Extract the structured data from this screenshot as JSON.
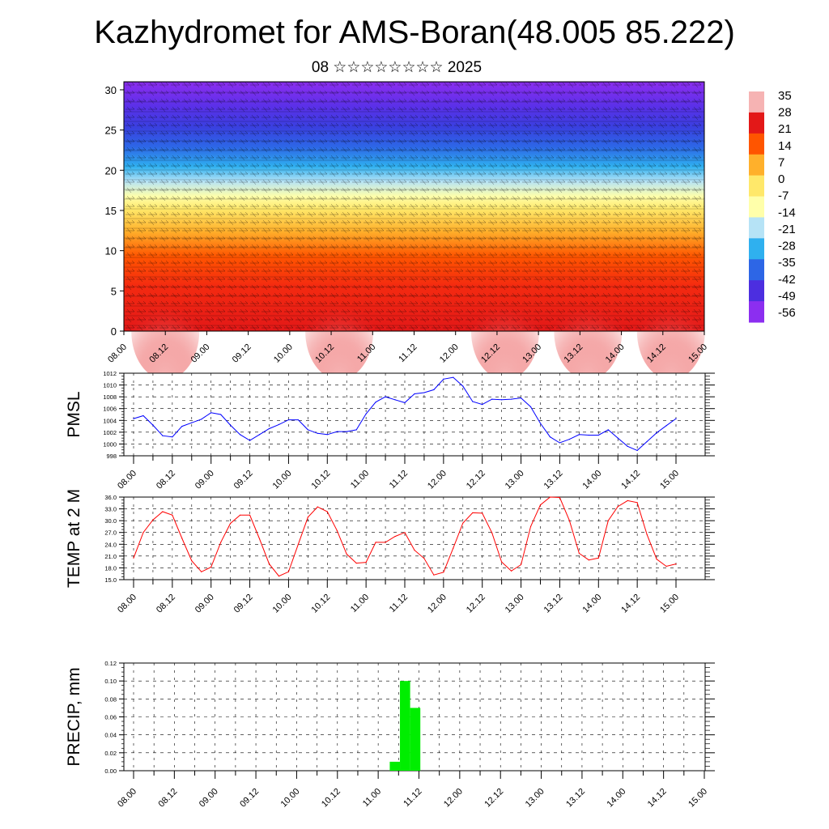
{
  "header": {
    "title": "Kazhydromet for AMS-Boran(48.005 85.222)",
    "subtitle": "08 ☆☆☆☆☆☆☆☆ 2025"
  },
  "chart_data": [
    {
      "id": "cross-section",
      "type": "heatmap",
      "ylim": [
        0,
        31
      ],
      "yticks": [
        0,
        5,
        10,
        15,
        20,
        25,
        30
      ],
      "xticklabels": [
        "08.00",
        "08.12",
        "09.00",
        "09.12",
        "10.00",
        "10.12",
        "11.00",
        "11.12",
        "12.00",
        "12.12",
        "13.00",
        "13.12",
        "14.00",
        "14.12",
        "15.00"
      ],
      "colorbar_labels": [
        "35",
        "28",
        "21",
        "14",
        "7",
        "0",
        "-7",
        "-14",
        "-21",
        "-28",
        "-35",
        "-42",
        "-49",
        "-56"
      ],
      "colorbar_colors": [
        "#f6b3b3",
        "#e31818",
        "#ff5500",
        "#ffb02b",
        "#ffe86a",
        "#ffffaa",
        "#b6e3f6",
        "#2fb0ef",
        "#2d66e6",
        "#4c2ee0",
        "#8c2ef0"
      ],
      "hot_spots_x": [
        1,
        5,
        9,
        11,
        13
      ],
      "series": "gridded"
    },
    {
      "id": "pmsl",
      "type": "line",
      "ylabel": "PMSL",
      "ylim": [
        998,
        1012
      ],
      "yticks": [
        "998",
        "1000",
        "1002",
        "1004",
        "1006",
        "1008",
        "1010",
        "1012"
      ],
      "xticklabels": [
        "08.00",
        "08.12",
        "09.00",
        "09.12",
        "10.00",
        "10.12",
        "11.00",
        "11.12",
        "12.00",
        "12.12",
        "13.00",
        "13.12",
        "14.00",
        "14.12",
        "15.00"
      ],
      "color": "#0000ff",
      "values": [
        1004.3,
        1004.8,
        1003.2,
        1001.4,
        1001.2,
        1003.0,
        1003.6,
        1004.2,
        1005.3,
        1005.0,
        1003.2,
        1001.6,
        1000.6,
        1001.6,
        1002.6,
        1003.3,
        1004.1,
        1004.1,
        1002.4,
        1001.8,
        1001.6,
        1002.1,
        1002.1,
        1002.4,
        1005.1,
        1007.1,
        1008.0,
        1007.5,
        1007.0,
        1008.5,
        1008.7,
        1009.2,
        1011.0,
        1011.3,
        1009.8,
        1007.2,
        1006.7,
        1007.6,
        1007.5,
        1007.6,
        1007.8,
        1006.3,
        1003.5,
        1001.2,
        1000.2,
        1000.8,
        1001.6,
        1001.5,
        1001.5,
        1002.4,
        1001.0,
        999.6,
        998.9,
        1000.4,
        1001.9,
        1003.1,
        1004.3
      ]
    },
    {
      "id": "temp2m",
      "type": "line",
      "ylabel": "TEMP at 2 M",
      "ylim": [
        15,
        36
      ],
      "yticks": [
        "15.0",
        "18.0",
        "21.0",
        "24.0",
        "27.0",
        "30.0",
        "33.0",
        "36.0"
      ],
      "xticklabels": [
        "08.00",
        "08.12",
        "09.00",
        "09.12",
        "10.00",
        "10.12",
        "11.00",
        "11.12",
        "12.00",
        "12.12",
        "13.00",
        "13.12",
        "14.00",
        "14.12",
        "15.00"
      ],
      "color": "#ff0000",
      "values": [
        20.5,
        27.0,
        30.2,
        32.3,
        31.4,
        25.5,
        19.8,
        17.0,
        18.2,
        24.5,
        29.3,
        31.4,
        31.4,
        25.4,
        19.0,
        15.9,
        17.0,
        24.0,
        30.9,
        33.5,
        32.3,
        27.5,
        21.5,
        19.2,
        19.4,
        24.5,
        24.5,
        26.0,
        27.0,
        22.5,
        20.4,
        16.2,
        16.9,
        23.0,
        29.4,
        32.0,
        31.9,
        26.9,
        19.5,
        17.2,
        18.8,
        28.5,
        34.0,
        36.0,
        35.9,
        30.0,
        21.7,
        20.0,
        20.5,
        30.0,
        33.6,
        35.1,
        34.6,
        26.5,
        20.2,
        18.4,
        19.0
      ]
    },
    {
      "id": "precip",
      "type": "bar",
      "ylabel": "PRECIP, mm",
      "ylim": [
        0,
        0.12
      ],
      "yticks": [
        "0.00",
        "0.02",
        "0.04",
        "0.06",
        "0.08",
        "0.10",
        "0.12"
      ],
      "xticklabels": [
        "08.00",
        "08.12",
        "09.00",
        "09.12",
        "10.00",
        "10.12",
        "11.00",
        "11.12",
        "12.00",
        "12.12",
        "13.00",
        "13.12",
        "14.00",
        "14.12",
        "15.00"
      ],
      "color": "#00ee00",
      "bars": [
        {
          "step": 25,
          "value": 0.01
        },
        {
          "step": 26,
          "value": 0.1
        },
        {
          "step": 27,
          "value": 0.07
        }
      ]
    }
  ]
}
